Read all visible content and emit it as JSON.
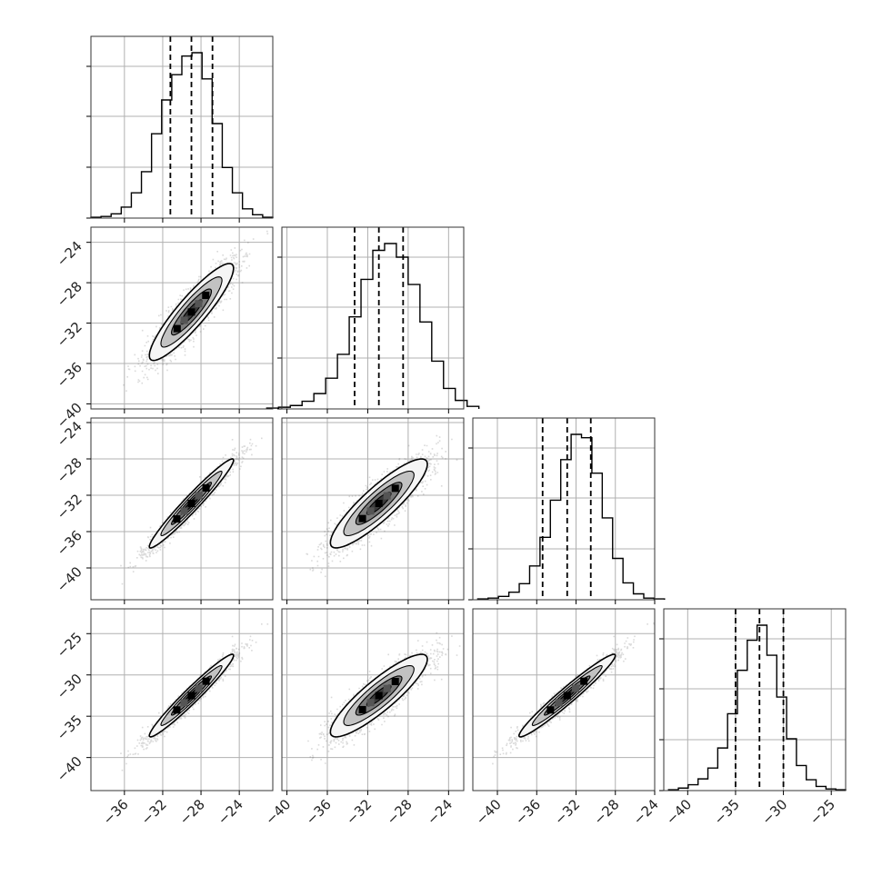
{
  "chart_data": {
    "type": "corner",
    "grid": true,
    "parameters": [
      {
        "ticks": [
          -36,
          -32,
          -28,
          -24
        ],
        "tick_labels": [
          "−36",
          "−32",
          "−28",
          "−24"
        ],
        "hist_range": [
          -39.5,
          -20.5
        ],
        "hist_counts": [
          1,
          2,
          5,
          13,
          30,
          55,
          100,
          140,
          170,
          192,
          196,
          165,
          112,
          60,
          30,
          11,
          4,
          1
        ],
        "quantiles": [
          -31.2,
          -29.0,
          -26.8
        ],
        "xlim": [
          -39.5,
          -20.5
        ],
        "ylim": [
          -40.5,
          -21.5
        ]
      },
      {
        "ticks": [
          -40,
          -36,
          -32,
          -28,
          -24
        ],
        "tick_labels": [
          "−40",
          "−36",
          "−32",
          "−28",
          "−24"
        ],
        "hist_range": [
          -42.0,
          -21.0
        ],
        "hist_counts": [
          1,
          2,
          4,
          9,
          18,
          36,
          64,
          108,
          152,
          186,
          194,
          178,
          146,
          102,
          56,
          24,
          10,
          3
        ],
        "quantiles": [
          -33.3,
          -30.9,
          -28.5
        ],
        "xlim": [
          -40.5,
          -22.5
        ],
        "ylim": [
          -40.5,
          -22.5
        ]
      },
      {
        "ticks": [
          -40,
          -36,
          -32,
          -28,
          -24
        ],
        "tick_labels": [
          "−40",
          "−36",
          "−32",
          "−28",
          "−24"
        ],
        "hist_range": [
          -42.0,
          -23.0
        ],
        "hist_counts": [
          1,
          2,
          4,
          9,
          19,
          40,
          74,
          118,
          166,
          196,
          192,
          150,
          97,
          49,
          20,
          7,
          2,
          1
        ],
        "quantiles": [
          -35.4,
          -32.9,
          -30.5
        ],
        "xlim": [
          -42.5,
          -24.0
        ],
        "ylim": [
          -43.5,
          -23.5
        ]
      },
      {
        "ticks": [
          -40,
          -35,
          -30,
          -25
        ],
        "tick_labels": [
          "−40",
          "−35",
          "−30",
          "−25"
        ],
        "hist_range": [
          -42.0,
          -23.5
        ],
        "hist_counts": [
          1,
          3,
          7,
          14,
          27,
          51,
          92,
          144,
          180,
          198,
          162,
          112,
          62,
          30,
          13,
          5,
          2,
          1
        ],
        "quantiles": [
          -35.0,
          -32.5,
          -30.0
        ],
        "xlim": [
          -42.5,
          -23.5
        ],
        "ylim": [
          -44.0,
          -22.0
        ]
      }
    ],
    "correlations": [
      {
        "row": 1,
        "col": 0,
        "corr": 0.9
      },
      {
        "row": 2,
        "col": 0,
        "corr": 0.97
      },
      {
        "row": 2,
        "col": 1,
        "corr": 0.88
      },
      {
        "row": 3,
        "col": 0,
        "corr": 0.97
      },
      {
        "row": 3,
        "col": 1,
        "corr": 0.88
      },
      {
        "row": 3,
        "col": 2,
        "corr": 0.97
      }
    ],
    "colors": {
      "line": "#000000",
      "points": "#555555",
      "grid": "#b0b0b0",
      "contour_levels": [
        "#f5f5f5",
        "#c2c2c2",
        "#7a7a7a",
        "#3a3a3a"
      ]
    }
  }
}
